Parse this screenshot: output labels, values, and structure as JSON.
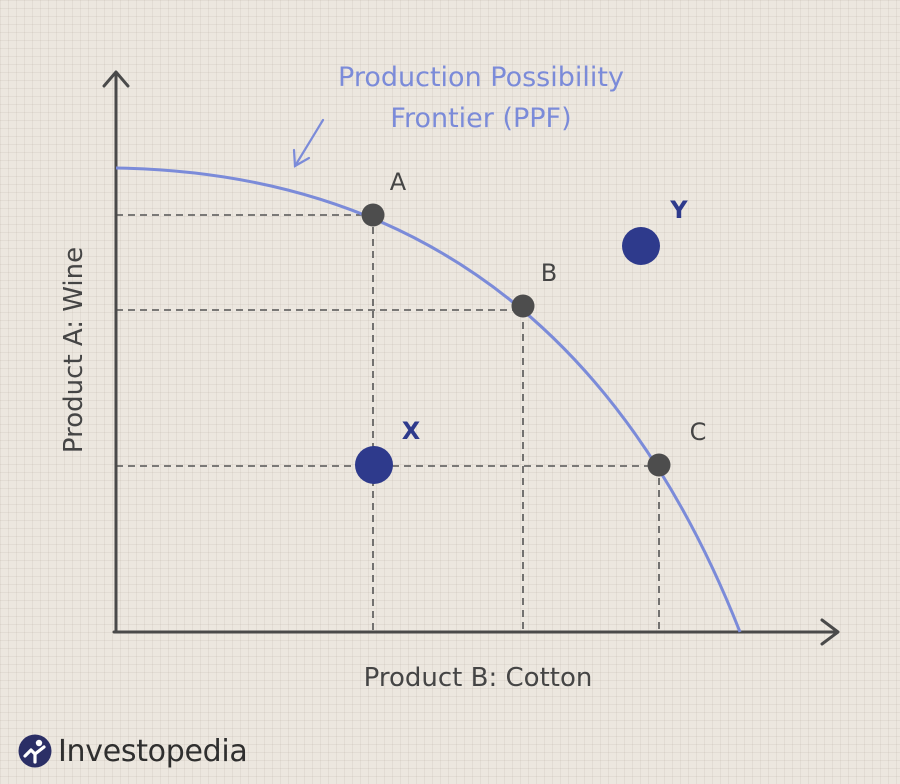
{
  "diagram": {
    "title_line1": "Production Possibility",
    "title_line2": "Frontier (PPF)",
    "y_axis_label": "Product A: Wine",
    "x_axis_label": "Product B: Cotton",
    "points": {
      "a": "A",
      "b": "B",
      "c": "C",
      "x": "X",
      "y": "Y"
    }
  },
  "colors": {
    "curve": "#7b8bd9",
    "title": "#7b8bd9",
    "axis": "#4a4a4a",
    "frontier_point": "#4d4d4d",
    "highlight_point": "#2e3a8c",
    "highlight_label": "#2e3a8c",
    "background": "#ece7df"
  },
  "brand": {
    "name": "Investopedia"
  }
}
